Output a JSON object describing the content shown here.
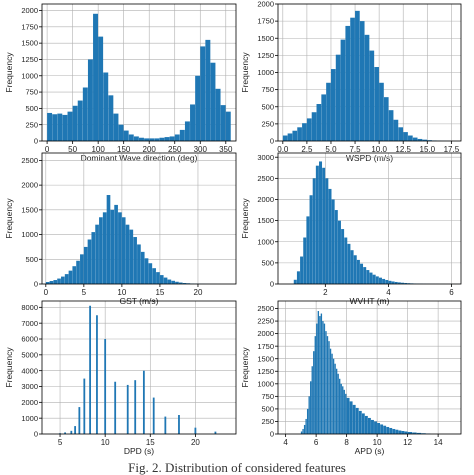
{
  "caption": "Fig. 2. Distribution of considered features",
  "colors": {
    "bar": "#1f77b4",
    "grid": "#b0b0b0",
    "axis": "#000000"
  },
  "chart_data": [
    {
      "type": "bar",
      "xlabel": "Dominant Wave direction (deg)",
      "ylabel": "Frequency",
      "xlim": [
        -10,
        370
      ],
      "ylim": [
        0,
        2100
      ],
      "xticks": [
        0,
        50,
        100,
        150,
        200,
        250,
        300,
        350
      ],
      "yticks": [
        0,
        250,
        500,
        750,
        1000,
        1250,
        1500,
        1750,
        2000
      ],
      "grid": true,
      "bin_edges": [
        0,
        10,
        20,
        30,
        40,
        50,
        60,
        70,
        80,
        90,
        100,
        110,
        120,
        130,
        140,
        150,
        160,
        170,
        180,
        190,
        200,
        210,
        220,
        230,
        240,
        250,
        260,
        270,
        280,
        290,
        300,
        310,
        320,
        330,
        340,
        350,
        360
      ],
      "values": [
        430,
        410,
        420,
        400,
        450,
        540,
        620,
        820,
        1250,
        1950,
        1600,
        1050,
        700,
        420,
        250,
        160,
        100,
        70,
        50,
        40,
        40,
        40,
        50,
        60,
        70,
        100,
        170,
        300,
        560,
        1000,
        1450,
        1550,
        1200,
        800,
        550,
        450
      ]
    },
    {
      "type": "bar",
      "xlabel": "WSPD (m/s)",
      "ylabel": "Frequency",
      "xlim": [
        -0.5,
        18.5
      ],
      "ylim": [
        0,
        2000
      ],
      "xticks": [
        0.0,
        2.5,
        5.0,
        7.5,
        10.0,
        12.5,
        15.0,
        17.5
      ],
      "xtick_labels": [
        "0.0",
        "2.5",
        "5.0",
        "7.5",
        "10.0",
        "12.5",
        "15.0",
        "17.5"
      ],
      "yticks": [
        0,
        250,
        500,
        750,
        1000,
        1250,
        1500,
        1750,
        2000
      ],
      "grid": true,
      "bin_edges": [
        0,
        0.5,
        1,
        1.5,
        2,
        2.5,
        3,
        3.5,
        4,
        4.5,
        5,
        5.5,
        6,
        6.5,
        7,
        7.5,
        8,
        8.5,
        9,
        9.5,
        10,
        10.5,
        11,
        11.5,
        12,
        12.5,
        13,
        13.5,
        14,
        14.5,
        15,
        15.5,
        16,
        16.5,
        17,
        17.5
      ],
      "values": [
        80,
        110,
        150,
        200,
        260,
        330,
        420,
        540,
        680,
        850,
        1050,
        1260,
        1480,
        1680,
        1800,
        1900,
        1750,
        1550,
        1320,
        1080,
        850,
        640,
        450,
        310,
        200,
        130,
        80,
        50,
        30,
        20,
        12,
        8,
        5,
        3,
        2
      ]
    },
    {
      "type": "bar",
      "xlabel": "GST (m/s)",
      "ylabel": "Frequency",
      "xlim": [
        -0.5,
        25
      ],
      "ylim": [
        0,
        2650
      ],
      "xticks": [
        0,
        5,
        10,
        15,
        20
      ],
      "yticks": [
        0,
        500,
        1000,
        1500,
        2000,
        2500
      ],
      "grid": true,
      "bin_edges": [
        0,
        0.5,
        1,
        1.5,
        2,
        2.5,
        3,
        3.5,
        4,
        4.5,
        5,
        5.5,
        6,
        6.5,
        7,
        7.5,
        8,
        8.5,
        9,
        9.5,
        10,
        10.5,
        11,
        11.5,
        12,
        12.5,
        13,
        13.5,
        14,
        14.5,
        15,
        15.5,
        16,
        16.5,
        17,
        17.5,
        18,
        18.5,
        19,
        19.5,
        20,
        20.5,
        21,
        21.5,
        22,
        22.5,
        23
      ],
      "values": [
        40,
        60,
        80,
        110,
        150,
        200,
        270,
        360,
        470,
        600,
        750,
        900,
        1050,
        1200,
        1350,
        1450,
        1800,
        1500,
        1600,
        1450,
        1350,
        1200,
        1100,
        950,
        800,
        650,
        520,
        420,
        320,
        240,
        180,
        130,
        90,
        65,
        45,
        30,
        20,
        15,
        10,
        7,
        5,
        4,
        3,
        2,
        2,
        1
      ]
    },
    {
      "type": "bar",
      "xlabel": "WVHT (m)",
      "ylabel": "Frequency",
      "xlim": [
        0.5,
        6.3
      ],
      "ylim": [
        0,
        3100
      ],
      "xticks": [
        2,
        4,
        6
      ],
      "yticks": [
        0,
        500,
        1000,
        1500,
        2000,
        2500,
        3000
      ],
      "grid": true,
      "bin_edges": [
        1.0,
        1.1,
        1.2,
        1.3,
        1.4,
        1.5,
        1.6,
        1.7,
        1.8,
        1.9,
        2.0,
        2.1,
        2.2,
        2.3,
        2.4,
        2.5,
        2.6,
        2.7,
        2.8,
        2.9,
        3.0,
        3.1,
        3.2,
        3.3,
        3.4,
        3.5,
        3.6,
        3.7,
        3.8,
        3.9,
        4.0,
        4.1,
        4.2,
        4.3,
        4.4,
        4.5,
        4.6,
        4.7,
        4.8,
        4.9,
        5.0,
        5.1,
        5.2,
        5.3,
        5.4,
        5.5,
        5.6,
        5.7,
        5.8,
        5.9,
        6.0
      ],
      "values": [
        100,
        300,
        650,
        1100,
        1600,
        2100,
        2500,
        2800,
        2900,
        2750,
        2500,
        2250,
        2000,
        1750,
        1500,
        1300,
        1100,
        950,
        800,
        680,
        570,
        480,
        400,
        330,
        270,
        220,
        180,
        150,
        120,
        95,
        75,
        60,
        48,
        38,
        30,
        24,
        19,
        15,
        12,
        10,
        8,
        6,
        5,
        4,
        3,
        3,
        2,
        2,
        1,
        1
      ]
    },
    {
      "type": "bar",
      "xlabel": "DPD (s)",
      "ylabel": "Frequency",
      "xlim": [
        3,
        24.5
      ],
      "ylim": [
        0,
        8400
      ],
      "xticks": [
        5,
        10,
        15,
        20
      ],
      "yticks": [
        0,
        1000,
        2000,
        3000,
        4000,
        5000,
        6000,
        7000,
        8000
      ],
      "grid": true,
      "x": [
        5.0,
        5.56,
        6.25,
        6.67,
        7.14,
        7.69,
        8.33,
        9.09,
        10.0,
        11.11,
        12.5,
        13.33,
        14.29,
        15.38,
        16.67,
        18.18,
        20.0,
        22.22
      ],
      "values": [
        50,
        100,
        200,
        500,
        1700,
        3500,
        8100,
        7500,
        6000,
        3300,
        3100,
        3400,
        4000,
        2300,
        1100,
        1200,
        400,
        150
      ]
    },
    {
      "type": "bar",
      "xlabel": "APD (s)",
      "ylabel": "Frequency",
      "xlim": [
        3.5,
        15.5
      ],
      "ylim": [
        0,
        2650
      ],
      "xticks": [
        4,
        6,
        8,
        10,
        12,
        14
      ],
      "yticks": [
        0,
        250,
        500,
        750,
        1000,
        1250,
        1500,
        1750,
        2000,
        2250,
        2500
      ],
      "grid": true,
      "bin_edges": [
        5.0,
        5.1,
        5.2,
        5.3,
        5.4,
        5.5,
        5.6,
        5.7,
        5.8,
        5.9,
        6.0,
        6.1,
        6.2,
        6.3,
        6.4,
        6.5,
        6.6,
        6.7,
        6.8,
        6.9,
        7.0,
        7.1,
        7.2,
        7.3,
        7.4,
        7.5,
        7.6,
        7.7,
        7.8,
        7.9,
        8.0,
        8.2,
        8.4,
        8.6,
        8.8,
        9.0,
        9.2,
        9.4,
        9.6,
        9.8,
        10.0,
        10.2,
        10.4,
        10.6,
        10.8,
        11.0,
        11.2,
        11.4,
        11.6,
        11.8,
        12.0,
        12.3,
        12.6,
        12.9,
        13.2,
        13.5
      ],
      "values": [
        50,
        100,
        180,
        300,
        500,
        750,
        1050,
        1350,
        1650,
        1950,
        2200,
        2450,
        2350,
        2400,
        2250,
        2200,
        2050,
        1950,
        1850,
        1700,
        1600,
        1500,
        1400,
        1300,
        1200,
        1100,
        1000,
        950,
        880,
        800,
        720,
        650,
        580,
        520,
        460,
        410,
        360,
        320,
        280,
        250,
        220,
        190,
        165,
        140,
        120,
        100,
        85,
        70,
        60,
        50,
        40,
        30,
        22,
        15,
        10
      ]
    }
  ]
}
